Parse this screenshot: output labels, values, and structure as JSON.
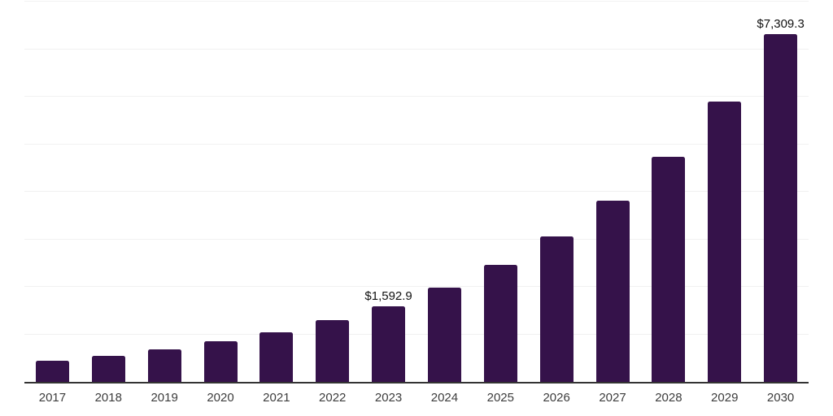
{
  "chart_data": {
    "type": "bar",
    "title": "",
    "xlabel": "",
    "ylabel": "",
    "categories": [
      "2017",
      "2018",
      "2019",
      "2020",
      "2021",
      "2022",
      "2023",
      "2024",
      "2025",
      "2026",
      "2027",
      "2028",
      "2029",
      "2030"
    ],
    "values": [
      440,
      550,
      690,
      855,
      1045,
      1295,
      1592.9,
      1990,
      2470,
      3065,
      3805,
      4740,
      5890,
      7309.3
    ],
    "data_labels": [
      "",
      "",
      "",
      "",
      "",
      "",
      "$1,592.9",
      "",
      "",
      "",
      "",
      "",
      "",
      "$7,309.3"
    ],
    "ylim": [
      0,
      8000
    ],
    "gridline_step": 1000,
    "grid": "horizontal-only",
    "legend": "none",
    "currency_prefix": "$"
  },
  "style_colors": {
    "bar_fill": "#35124a",
    "gridline": "#f1f1f1",
    "axis_line": "#333333",
    "tick_label_text": "#3c3c3c",
    "data_label_text": "#111111",
    "background": "#ffffff"
  }
}
